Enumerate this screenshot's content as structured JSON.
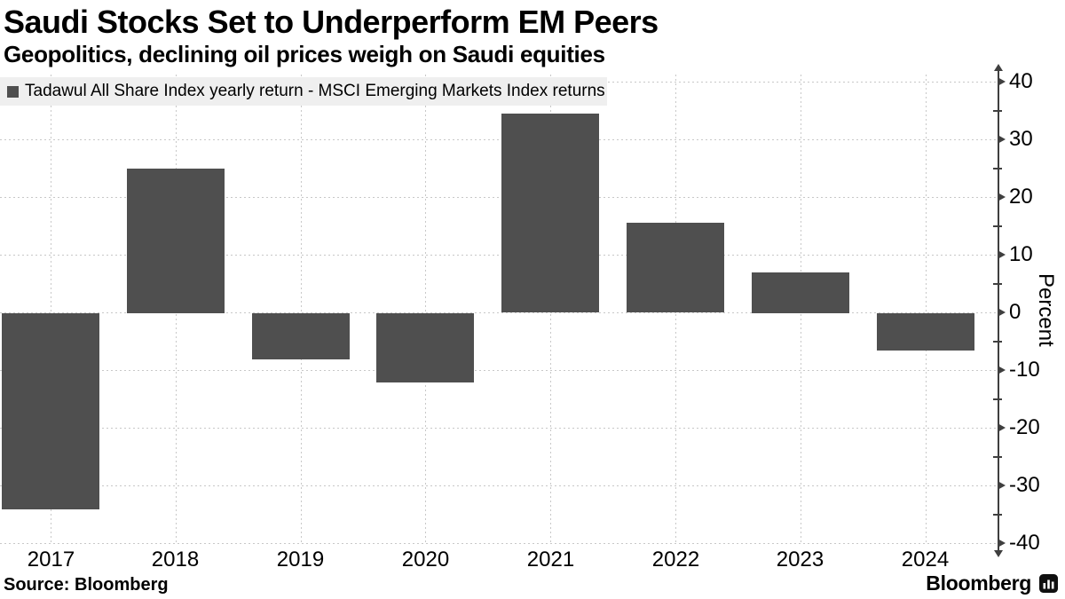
{
  "header": {
    "title": "Saudi Stocks Set to Underperform EM Peers",
    "subtitle": "Geopolitics, declining oil prices weigh on Saudi equities"
  },
  "legend": {
    "label": "Tadawul All Share Index yearly return - MSCI Emerging Markets Index returns",
    "swatch_color": "#4f4f4f"
  },
  "chart_data": {
    "type": "bar",
    "categories": [
      "2017",
      "2018",
      "2019",
      "2020",
      "2021",
      "2022",
      "2023",
      "2024"
    ],
    "values": [
      -34,
      25,
      -8,
      -12,
      34.5,
      15.5,
      7,
      -6.5
    ],
    "title": "Saudi Stocks Set to Underperform EM Peers",
    "subtitle": "Geopolitics, declining oil prices weigh on Saudi equities",
    "series_label": "Tadawul All Share Index yearly return - MSCI Emerging Markets Index returns",
    "xlabel": "",
    "ylabel": "Percent",
    "ylim": [
      -40,
      40
    ],
    "y_ticks": [
      40,
      30,
      20,
      10,
      0,
      -10,
      -20,
      -30,
      -40
    ],
    "y_minor_interval": 5,
    "grid": true,
    "legend_position": "top-left",
    "bar_color": "#4f4f4f"
  },
  "colors": {
    "bar": "#4f4f4f",
    "grid": "#c8c8c8",
    "axis": "#3f3f3f",
    "legend_bg": "#efefef",
    "text": "#000000",
    "background": "#ffffff"
  },
  "footer": {
    "source": "Source: Bloomberg",
    "brand": "Bloomberg"
  }
}
